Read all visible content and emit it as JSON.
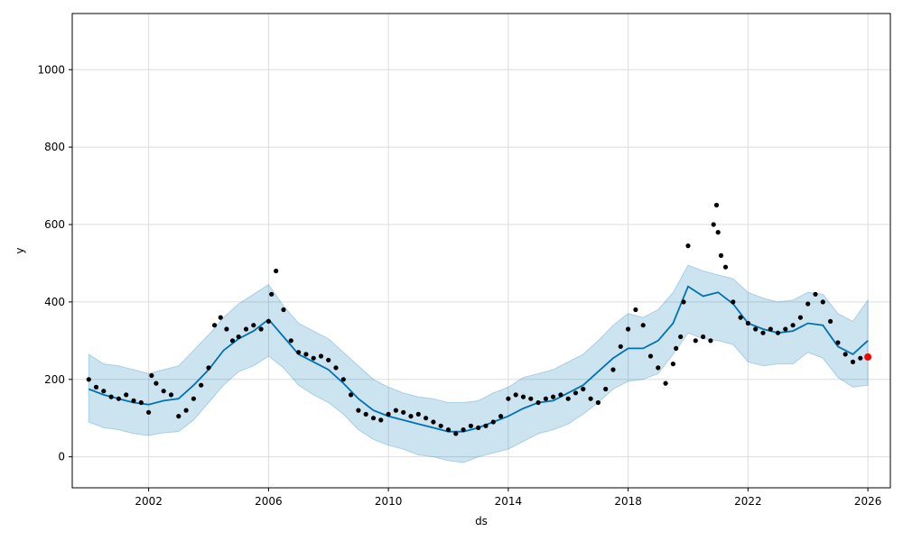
{
  "chart_data": {
    "type": "scatter",
    "title": "",
    "xlabel": "ds",
    "ylabel": "y",
    "xlim": [
      1999.45,
      2026.75
    ],
    "ylim": [
      -80,
      1145
    ],
    "grid": true,
    "x_ticks": [
      2002,
      2006,
      2010,
      2014,
      2018,
      2022,
      2026
    ],
    "x_tick_labels": [
      "2002",
      "2006",
      "2010",
      "2014",
      "2018",
      "2022",
      "2026"
    ],
    "y_ticks": [
      0,
      200,
      400,
      600,
      800,
      1000
    ],
    "y_tick_labels": [
      "0",
      "200",
      "400",
      "600",
      "800",
      "1000"
    ],
    "colors": {
      "observed": "#000000",
      "forecast_line": "#0072B2",
      "uncertainty_band": "#0072B2",
      "latest_point": "#ff0000",
      "grid": "#dddddd"
    },
    "series": [
      {
        "kind": "uncertainty-band",
        "x": [
          2000.0,
          2000.5,
          2001.0,
          2001.5,
          2002.0,
          2002.5,
          2003.0,
          2003.5,
          2004.0,
          2004.5,
          2005.0,
          2005.5,
          2006.0,
          2006.5,
          2007.0,
          2007.5,
          2008.0,
          2008.5,
          2009.0,
          2009.5,
          2010.0,
          2010.5,
          2011.0,
          2011.5,
          2012.0,
          2012.5,
          2013.0,
          2013.5,
          2014.0,
          2014.5,
          2015.0,
          2015.5,
          2016.0,
          2016.5,
          2017.0,
          2017.5,
          2018.0,
          2018.5,
          2019.0,
          2019.5,
          2020.0,
          2020.5,
          2021.0,
          2021.5,
          2022.0,
          2022.5,
          2023.0,
          2023.5,
          2024.0,
          2024.5,
          2025.0,
          2025.5,
          2026.0
        ],
        "lower": [
          90,
          75,
          70,
          60,
          55,
          62,
          65,
          95,
          140,
          185,
          220,
          235,
          260,
          230,
          185,
          160,
          140,
          110,
          70,
          45,
          30,
          20,
          5,
          0,
          -10,
          -15,
          0,
          10,
          20,
          40,
          60,
          70,
          85,
          110,
          140,
          175,
          195,
          200,
          215,
          265,
          320,
          305,
          300,
          290,
          245,
          235,
          240,
          240,
          270,
          255,
          205,
          180,
          185
        ],
        "upper": [
          265,
          240,
          235,
          225,
          215,
          225,
          235,
          275,
          315,
          360,
          395,
          420,
          445,
          390,
          345,
          325,
          305,
          270,
          235,
          200,
          180,
          165,
          155,
          150,
          140,
          140,
          145,
          165,
          180,
          205,
          215,
          225,
          245,
          265,
          300,
          340,
          370,
          360,
          380,
          425,
          495,
          480,
          470,
          460,
          425,
          410,
          400,
          405,
          425,
          420,
          370,
          350,
          405
        ]
      },
      {
        "kind": "forecast-line",
        "x": [
          2000.0,
          2000.5,
          2001.0,
          2001.5,
          2002.0,
          2002.5,
          2003.0,
          2003.5,
          2004.0,
          2004.5,
          2005.0,
          2005.5,
          2006.0,
          2006.5,
          2007.0,
          2007.5,
          2008.0,
          2008.5,
          2009.0,
          2009.5,
          2010.0,
          2010.5,
          2011.0,
          2011.5,
          2012.0,
          2012.5,
          2013.0,
          2013.5,
          2014.0,
          2014.5,
          2015.0,
          2015.5,
          2016.0,
          2016.5,
          2017.0,
          2017.5,
          2018.0,
          2018.5,
          2019.0,
          2019.5,
          2020.0,
          2020.5,
          2021.0,
          2021.5,
          2022.0,
          2022.5,
          2023.0,
          2023.5,
          2024.0,
          2024.5,
          2025.0,
          2025.5,
          2026.0
        ],
        "y": [
          175,
          160,
          150,
          140,
          135,
          145,
          150,
          185,
          225,
          275,
          305,
          325,
          355,
          310,
          265,
          245,
          225,
          190,
          150,
          120,
          105,
          95,
          85,
          75,
          65,
          65,
          75,
          90,
          105,
          125,
          140,
          145,
          165,
          185,
          220,
          255,
          280,
          280,
          300,
          345,
          440,
          415,
          425,
          395,
          345,
          330,
          320,
          325,
          345,
          340,
          285,
          265,
          300
        ]
      },
      {
        "kind": "observed",
        "x": [
          2000.0,
          2000.25,
          2000.5,
          2000.75,
          2001.0,
          2001.25,
          2001.5,
          2001.75,
          2002.0,
          2002.1,
          2002.25,
          2002.5,
          2002.75,
          2003.0,
          2003.25,
          2003.5,
          2003.75,
          2004.0,
          2004.2,
          2004.4,
          2004.6,
          2004.8,
          2005.0,
          2005.25,
          2005.5,
          2005.75,
          2006.0,
          2006.1,
          2006.25,
          2006.5,
          2006.75,
          2007.0,
          2007.25,
          2007.5,
          2007.75,
          2008.0,
          2008.25,
          2008.5,
          2008.75,
          2009.0,
          2009.25,
          2009.5,
          2009.75,
          2010.0,
          2010.25,
          2010.5,
          2010.75,
          2011.0,
          2011.25,
          2011.5,
          2011.75,
          2012.0,
          2012.25,
          2012.5,
          2012.75,
          2013.0,
          2013.25,
          2013.5,
          2013.75,
          2014.0,
          2014.25,
          2014.5,
          2014.75,
          2015.0,
          2015.25,
          2015.5,
          2015.75,
          2016.0,
          2016.25,
          2016.5,
          2016.75,
          2017.0,
          2017.25,
          2017.5,
          2017.75,
          2018.0,
          2018.25,
          2018.5,
          2018.75,
          2019.0,
          2019.25,
          2019.5,
          2019.6,
          2019.75,
          2019.85,
          2020.0,
          2020.25,
          2020.5,
          2020.75,
          2020.85,
          2020.95,
          2021.0,
          2021.1,
          2021.25,
          2021.5,
          2021.75,
          2022.0,
          2022.25,
          2022.5,
          2022.75,
          2023.0,
          2023.25,
          2023.5,
          2023.75,
          2024.0,
          2024.25,
          2024.5,
          2024.75,
          2025.0,
          2025.25,
          2025.5,
          2025.75,
          2026.0
        ],
        "y": [
          200,
          180,
          170,
          155,
          150,
          160,
          145,
          140,
          115,
          210,
          190,
          170,
          160,
          105,
          120,
          150,
          185,
          230,
          340,
          360,
          330,
          300,
          310,
          330,
          340,
          330,
          350,
          420,
          480,
          380,
          300,
          270,
          265,
          255,
          260,
          250,
          230,
          200,
          160,
          120,
          110,
          100,
          95,
          110,
          120,
          115,
          105,
          110,
          100,
          90,
          80,
          70,
          60,
          70,
          80,
          75,
          80,
          90,
          105,
          150,
          160,
          155,
          150,
          140,
          150,
          155,
          160,
          150,
          165,
          175,
          150,
          140,
          175,
          225,
          285,
          330,
          380,
          340,
          260,
          230,
          190,
          240,
          280,
          310,
          400,
          545,
          300,
          310,
          300,
          600,
          650,
          580,
          520,
          490,
          400,
          360,
          345,
          330,
          320,
          330,
          320,
          330,
          340,
          360,
          395,
          420,
          400,
          350,
          295,
          265,
          245,
          255,
          260
        ]
      }
    ],
    "latest_point": {
      "x": 2026.0,
      "y": 258
    }
  }
}
